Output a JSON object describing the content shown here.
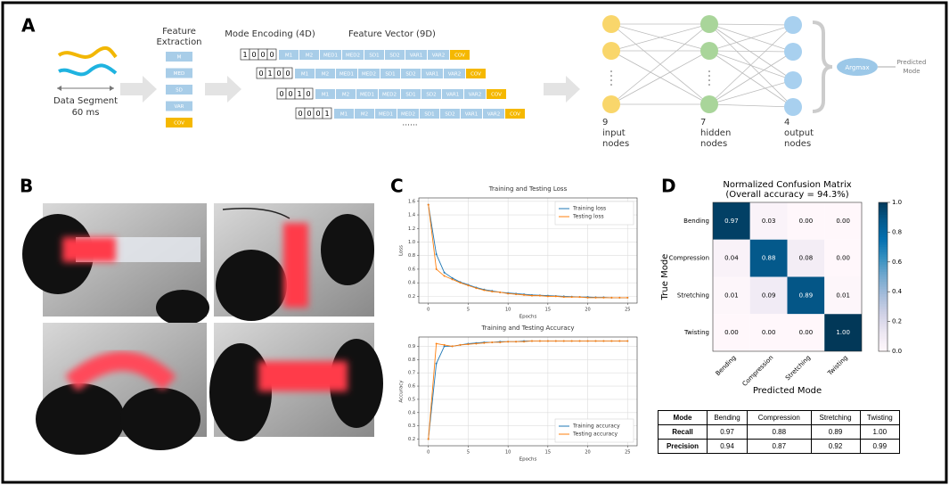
{
  "panels": [
    "A",
    "B",
    "C",
    "D"
  ],
  "diagram": {
    "data_segment": [
      "Data Segment",
      "60 ms"
    ],
    "feature_extraction": [
      "Feature",
      "Extraction"
    ],
    "features": [
      "M",
      "MED",
      "SD",
      "VAR",
      "COV"
    ],
    "mode_encoding": "Mode Encoding (4D)",
    "feature_vector": "Feature Vector (9D)",
    "encodings": [
      [
        "1",
        "0",
        "0",
        "0"
      ],
      [
        "0",
        "1",
        "0",
        "0"
      ],
      [
        "0",
        "0",
        "1",
        "0"
      ],
      [
        "0",
        "0",
        "0",
        "1"
      ]
    ],
    "vector": [
      "M1",
      "M2",
      "MED1",
      "MED2",
      "SD1",
      "SD2",
      "VAR1",
      "VAR2",
      "COV"
    ],
    "ellipsis": "......",
    "layers": [
      {
        "count": "9",
        "label": [
          "input",
          "nodes"
        ]
      },
      {
        "count": "7",
        "label": [
          "hidden",
          "nodes"
        ]
      },
      {
        "count": "4",
        "label": [
          "output",
          "nodes"
        ]
      }
    ],
    "argmax": "Argmax",
    "output": [
      "Predicted",
      "Mode"
    ]
  },
  "chart_data": [
    {
      "type": "line",
      "title": "Training and Testing Loss",
      "xlabel": "Epochs",
      "ylabel": "Loss",
      "x": [
        0,
        1,
        2,
        3,
        4,
        5,
        6,
        7,
        8,
        9,
        10,
        11,
        12,
        13,
        14,
        15,
        16,
        17,
        18,
        19,
        20,
        21,
        22,
        23,
        24,
        25
      ],
      "series": [
        {
          "name": "Training loss",
          "color": "#1f77b4",
          "values": [
            1.55,
            0.82,
            0.55,
            0.47,
            0.41,
            0.37,
            0.33,
            0.3,
            0.28,
            0.26,
            0.25,
            0.24,
            0.23,
            0.22,
            0.215,
            0.21,
            0.205,
            0.2,
            0.195,
            0.19,
            0.19,
            0.185,
            0.185,
            0.18,
            0.18,
            0.18
          ]
        },
        {
          "name": "Testing loss",
          "color": "#ff7f0e",
          "values": [
            1.55,
            0.6,
            0.5,
            0.45,
            0.4,
            0.36,
            0.32,
            0.29,
            0.27,
            0.26,
            0.24,
            0.23,
            0.22,
            0.21,
            0.21,
            0.2,
            0.2,
            0.19,
            0.19,
            0.19,
            0.18,
            0.18,
            0.18,
            0.18,
            0.18,
            0.18
          ]
        }
      ],
      "xlim": [
        -1.2,
        26.2
      ],
      "ylim": [
        0.1,
        1.65
      ],
      "xticks": [
        0,
        5,
        10,
        15,
        20,
        25
      ],
      "yticks": [
        0.2,
        0.4,
        0.6,
        0.8,
        {
          "value": 1,
          "label": "1.0"
        },
        1.2,
        1.4,
        1.6
      ],
      "grid": true,
      "legend": "upper right"
    },
    {
      "type": "line",
      "title": "Training and Testing Accuracy",
      "xlabel": "Epochs",
      "ylabel": "Accuracy",
      "x": [
        0,
        1,
        2,
        3,
        4,
        5,
        6,
        7,
        8,
        9,
        10,
        11,
        12,
        13,
        14,
        15,
        16,
        17,
        18,
        19,
        20,
        21,
        22,
        23,
        24,
        25
      ],
      "series": [
        {
          "name": "Training accuracy",
          "color": "#1f77b4",
          "values": [
            0.2,
            0.77,
            0.9,
            0.9,
            0.91,
            0.92,
            0.925,
            0.93,
            0.93,
            0.935,
            0.935,
            0.935,
            0.94,
            0.94,
            0.94,
            0.94,
            0.94,
            0.94,
            0.94,
            0.94,
            0.94,
            0.94,
            0.94,
            0.94,
            0.94,
            0.94
          ]
        },
        {
          "name": "Testing accuracy",
          "color": "#ff7f0e",
          "values": [
            0.2,
            0.92,
            0.91,
            0.9,
            0.91,
            0.915,
            0.92,
            0.925,
            0.93,
            0.93,
            0.935,
            0.935,
            0.935,
            0.94,
            0.94,
            0.94,
            0.94,
            0.94,
            0.94,
            0.94,
            0.94,
            0.94,
            0.94,
            0.94,
            0.94,
            0.94
          ]
        }
      ],
      "xlim": [
        -1.2,
        26.2
      ],
      "ylim": [
        0.15,
        0.97
      ],
      "xticks": [
        0,
        5,
        10,
        15,
        20,
        25
      ],
      "yticks": [
        0.2,
        0.3,
        0.4,
        0.5,
        0.6,
        0.7,
        0.8,
        0.9
      ],
      "grid": true,
      "legend": "lower right"
    },
    {
      "type": "heatmap",
      "title": [
        "Normalized Confusion Matrix",
        "(Overall accuracy = 94.3%)"
      ],
      "xlabel": "Predicted Mode",
      "ylabel": "True Mode",
      "categories": [
        "Bending",
        "Compression",
        "Stretching",
        "Twisting"
      ],
      "values": [
        [
          0.97,
          0.03,
          0,
          0
        ],
        [
          0.04,
          0.88,
          0.08,
          0
        ],
        [
          0.01,
          0.09,
          0.89,
          0.01
        ],
        [
          0,
          0,
          0,
          1
        ]
      ],
      "value_labels": [
        [
          "0.97",
          "0.03",
          "0.00",
          "0.00"
        ],
        [
          "0.04",
          "0.88",
          "0.08",
          "0.00"
        ],
        [
          "0.01",
          "0.09",
          "0.89",
          "0.01"
        ],
        [
          "0.00",
          "0.00",
          "0.00",
          "1.00"
        ]
      ],
      "zlim": [
        0,
        1
      ],
      "zticks": [
        {
          "value": 0,
          "label": "0.0"
        },
        0.2,
        0.4,
        0.6,
        0.8,
        {
          "value": 1,
          "label": "1.0"
        }
      ],
      "colormap": [
        "#fff7fb",
        "#ece7f2",
        "#d0d1e6",
        "#a6bddb",
        "#74a9cf",
        "#3690c0",
        "#0570b0",
        "#045a8d",
        "#023858"
      ]
    }
  ],
  "table": {
    "header": [
      "Mode",
      "Bending",
      "Compression",
      "Stretching",
      "Twisting"
    ],
    "rows": [
      [
        "Recall",
        "0.97",
        "0.88",
        "0.89",
        "1.00"
      ],
      [
        "Precision",
        "0.94",
        "0.87",
        "0.92",
        "0.99"
      ]
    ]
  }
}
